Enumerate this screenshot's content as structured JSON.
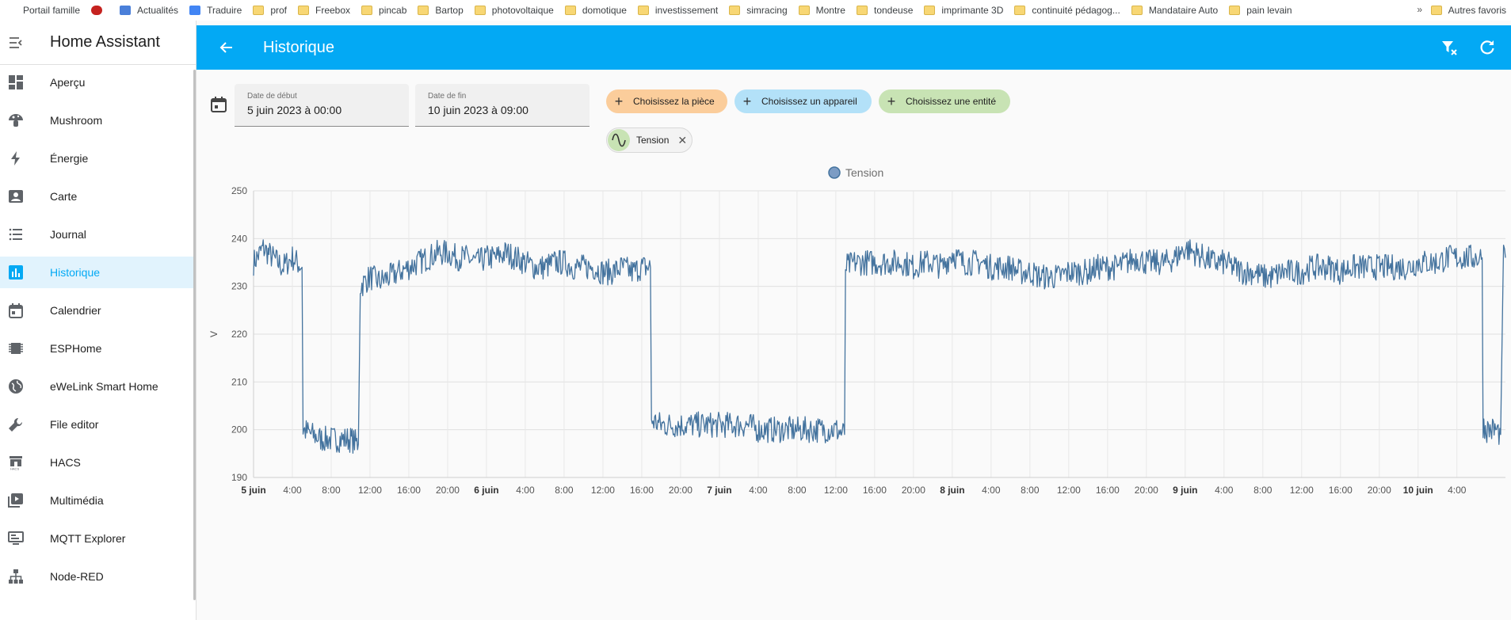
{
  "bookmarks": {
    "items": [
      {
        "label": "Portail famille",
        "icon": "none"
      },
      {
        "label": "",
        "icon": "chat-bubble-icon"
      },
      {
        "label": "Actualités",
        "icon": "news-icon"
      },
      {
        "label": "Traduire",
        "icon": "translate-icon"
      },
      {
        "label": "prof",
        "icon": "folder-icon"
      },
      {
        "label": "Freebox",
        "icon": "folder-icon"
      },
      {
        "label": "pincab",
        "icon": "folder-icon"
      },
      {
        "label": "Bartop",
        "icon": "folder-icon"
      },
      {
        "label": "photovoltaique",
        "icon": "folder-icon"
      },
      {
        "label": "domotique",
        "icon": "folder-icon"
      },
      {
        "label": "investissement",
        "icon": "folder-icon"
      },
      {
        "label": "simracing",
        "icon": "folder-icon"
      },
      {
        "label": "Montre",
        "icon": "folder-icon"
      },
      {
        "label": "tondeuse",
        "icon": "folder-icon"
      },
      {
        "label": "imprimante 3D",
        "icon": "folder-icon"
      },
      {
        "label": "continuité pédagog...",
        "icon": "folder-icon"
      },
      {
        "label": "Mandataire Auto",
        "icon": "folder-icon"
      },
      {
        "label": "pain levain",
        "icon": "folder-icon"
      }
    ],
    "overflow": "»",
    "other": "Autres favoris"
  },
  "sidebar": {
    "title": "Home Assistant",
    "items": [
      {
        "label": "Aperçu",
        "icon": "dashboard-icon",
        "active": false
      },
      {
        "label": "Mushroom",
        "icon": "mushroom-icon",
        "active": false
      },
      {
        "label": "Énergie",
        "icon": "lightning-icon",
        "active": false
      },
      {
        "label": "Carte",
        "icon": "map-icon",
        "active": false
      },
      {
        "label": "Journal",
        "icon": "list-icon",
        "active": false
      },
      {
        "label": "Historique",
        "icon": "chart-bar-icon",
        "active": true
      },
      {
        "label": "Calendrier",
        "icon": "calendar-icon",
        "active": false
      },
      {
        "label": "ESPHome",
        "icon": "chip-icon",
        "active": false
      },
      {
        "label": "eWeLink Smart Home",
        "icon": "globe-icon",
        "active": false
      },
      {
        "label": "File editor",
        "icon": "wrench-icon",
        "active": false
      },
      {
        "label": "HACS",
        "icon": "hacs-icon",
        "active": false
      },
      {
        "label": "Multimédia",
        "icon": "media-icon",
        "active": false
      },
      {
        "label": "MQTT Explorer",
        "icon": "monitor-icon",
        "active": false
      },
      {
        "label": "Node-RED",
        "icon": "sitemap-icon",
        "active": false
      }
    ]
  },
  "header": {
    "title": "Historique"
  },
  "filters": {
    "start_label": "Date de début",
    "start_value": "5 juin 2023 à 00:00",
    "end_label": "Date de fin",
    "end_value": "10 juin 2023 à 09:00",
    "chip_area": "Choisissez la pièce",
    "chip_device": "Choisissez un appareil",
    "chip_entity": "Choisissez une entité",
    "selected_entity": "Tension"
  },
  "colors": {
    "accent": "#03a9f4",
    "series": "#44739e"
  },
  "chart_data": {
    "type": "line",
    "title": "",
    "legend": [
      "Tension"
    ],
    "legend_position": "top-center",
    "ylabel": "V",
    "ylim": [
      190,
      250
    ],
    "yticks": [
      190,
      200,
      210,
      220,
      230,
      240,
      250
    ],
    "xlim_hours": [
      0,
      129
    ],
    "grid": true,
    "xticks": [
      {
        "label": "5 juin",
        "bold": true
      },
      {
        "label": "4:00"
      },
      {
        "label": "8:00"
      },
      {
        "label": "12:00"
      },
      {
        "label": "16:00"
      },
      {
        "label": "20:00"
      },
      {
        "label": "6 juin",
        "bold": true
      },
      {
        "label": "4:00"
      },
      {
        "label": "8:00"
      },
      {
        "label": "12:00"
      },
      {
        "label": "16:00"
      },
      {
        "label": "20:00"
      },
      {
        "label": "7 juin",
        "bold": true
      },
      {
        "label": "4:00"
      },
      {
        "label": "8:00"
      },
      {
        "label": "12:00"
      },
      {
        "label": "16:00"
      },
      {
        "label": "20:00"
      },
      {
        "label": "8 juin",
        "bold": true
      },
      {
        "label": "4:00"
      },
      {
        "label": "8:00"
      },
      {
        "label": "12:00"
      },
      {
        "label": "16:00"
      },
      {
        "label": "20:00"
      },
      {
        "label": "9 juin",
        "bold": true
      },
      {
        "label": "4:00"
      },
      {
        "label": "8:00"
      },
      {
        "label": "12:00"
      },
      {
        "label": "16:00"
      },
      {
        "label": "20:00"
      },
      {
        "label": "10 juin",
        "bold": true
      },
      {
        "label": "4:00"
      }
    ],
    "series": [
      {
        "name": "Tension",
        "points": [
          [
            0,
            235
          ],
          [
            1,
            238
          ],
          [
            2,
            236
          ],
          [
            3,
            234
          ],
          [
            4,
            236
          ],
          [
            5,
            234
          ],
          [
            5.1,
            200
          ],
          [
            6,
            199
          ],
          [
            7,
            198
          ],
          [
            8,
            198
          ],
          [
            9,
            198
          ],
          [
            10,
            198
          ],
          [
            10.8,
            197
          ],
          [
            11,
            230
          ],
          [
            12,
            232
          ],
          [
            13,
            231
          ],
          [
            14,
            232
          ],
          [
            15,
            233
          ],
          [
            16,
            234
          ],
          [
            17,
            235
          ],
          [
            18,
            236
          ],
          [
            19,
            237
          ],
          [
            20,
            237
          ],
          [
            21,
            236
          ],
          [
            22,
            236
          ],
          [
            23,
            235
          ],
          [
            24,
            236
          ],
          [
            25,
            236
          ],
          [
            26,
            237
          ],
          [
            27,
            236
          ],
          [
            28,
            235
          ],
          [
            29,
            234
          ],
          [
            30,
            234
          ],
          [
            31,
            235
          ],
          [
            32,
            235
          ],
          [
            33,
            234
          ],
          [
            34,
            234
          ],
          [
            35,
            234
          ],
          [
            36,
            233
          ],
          [
            37,
            233
          ],
          [
            38,
            234
          ],
          [
            39,
            233
          ],
          [
            40,
            234
          ],
          [
            40.9,
            234
          ],
          [
            41,
            202
          ],
          [
            42,
            201
          ],
          [
            43,
            201
          ],
          [
            44,
            201
          ],
          [
            45,
            201
          ],
          [
            46,
            201
          ],
          [
            47,
            201
          ],
          [
            48,
            201
          ],
          [
            49,
            201
          ],
          [
            50,
            201
          ],
          [
            51,
            201
          ],
          [
            52,
            200
          ],
          [
            53,
            200
          ],
          [
            54,
            200
          ],
          [
            55,
            200
          ],
          [
            56,
            200
          ],
          [
            57,
            200
          ],
          [
            58,
            200
          ],
          [
            60,
            200
          ],
          [
            60.9,
            199
          ],
          [
            61,
            234
          ],
          [
            62,
            235
          ],
          [
            63,
            235
          ],
          [
            64,
            235
          ],
          [
            65,
            235
          ],
          [
            66,
            235
          ],
          [
            67,
            235
          ],
          [
            68,
            234
          ],
          [
            69,
            235
          ],
          [
            70,
            235
          ],
          [
            71,
            234
          ],
          [
            72,
            237
          ],
          [
            73,
            235
          ],
          [
            74,
            235
          ],
          [
            75,
            235
          ],
          [
            76,
            234
          ],
          [
            77,
            234
          ],
          [
            78,
            234
          ],
          [
            79,
            233
          ],
          [
            80,
            233
          ],
          [
            81,
            232
          ],
          [
            82,
            232
          ],
          [
            83,
            232
          ],
          [
            84,
            233
          ],
          [
            85,
            233
          ],
          [
            86,
            233
          ],
          [
            87,
            234
          ],
          [
            88,
            234
          ],
          [
            89,
            234
          ],
          [
            90,
            235
          ],
          [
            91,
            236
          ],
          [
            92,
            235
          ],
          [
            93,
            235
          ],
          [
            94,
            235
          ],
          [
            95,
            236
          ],
          [
            96,
            238
          ],
          [
            97,
            237
          ],
          [
            98,
            236
          ],
          [
            99,
            235
          ],
          [
            100,
            235
          ],
          [
            101,
            234
          ],
          [
            102,
            233
          ],
          [
            103,
            233
          ],
          [
            104,
            232
          ],
          [
            105,
            232
          ],
          [
            106,
            233
          ],
          [
            107,
            233
          ],
          [
            108,
            233
          ],
          [
            109,
            234
          ],
          [
            110,
            234
          ],
          [
            111,
            234
          ],
          [
            112,
            233
          ],
          [
            113,
            234
          ],
          [
            114,
            234
          ],
          [
            115,
            234
          ],
          [
            116,
            234
          ],
          [
            117,
            234
          ],
          [
            118,
            234
          ],
          [
            119,
            234
          ],
          [
            120,
            235
          ],
          [
            121,
            235
          ],
          [
            122,
            235
          ],
          [
            123,
            236
          ],
          [
            124,
            236
          ],
          [
            125,
            236
          ],
          [
            126,
            236
          ],
          [
            126.6,
            236
          ],
          [
            126.7,
            201
          ],
          [
            127,
            200
          ],
          [
            128,
            200
          ],
          [
            128.5,
            199
          ],
          [
            128.8,
            236
          ],
          [
            129,
            236
          ]
        ]
      }
    ]
  }
}
